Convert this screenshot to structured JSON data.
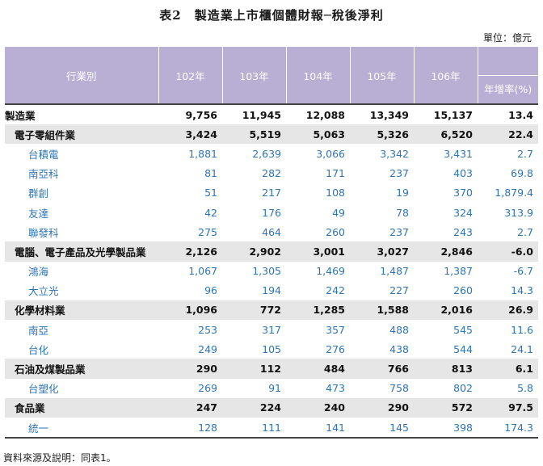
{
  "title": {
    "label": "表2",
    "text": "製造業上市櫃個體財報─稅後淨利"
  },
  "unit": "單位：億元",
  "header": {
    "category": "行業別",
    "years": [
      "102年",
      "103年",
      "104年",
      "105年",
      "106年"
    ],
    "growth": "年增率(%)"
  },
  "rows": [
    {
      "type": "total",
      "name": "製造業",
      "values": [
        "9,756",
        "11,945",
        "12,088",
        "13,349",
        "15,137"
      ],
      "growth": "13.4"
    },
    {
      "type": "cat",
      "name": "電子零組件業",
      "values": [
        "3,424",
        "5,519",
        "5,063",
        "5,326",
        "6,520"
      ],
      "growth": "22.4"
    },
    {
      "type": "co",
      "name": "台積電",
      "values": [
        "1,881",
        "2,639",
        "3,066",
        "3,342",
        "3,431"
      ],
      "growth": "2.7"
    },
    {
      "type": "co",
      "name": "南亞科",
      "values": [
        "81",
        "282",
        "171",
        "237",
        "403"
      ],
      "growth": "69.8"
    },
    {
      "type": "co",
      "name": "群創",
      "values": [
        "51",
        "217",
        "108",
        "19",
        "370"
      ],
      "growth": "1,879.4"
    },
    {
      "type": "co",
      "name": "友達",
      "values": [
        "42",
        "176",
        "49",
        "78",
        "324"
      ],
      "growth": "313.9"
    },
    {
      "type": "co",
      "name": "聯發科",
      "values": [
        "275",
        "464",
        "260",
        "237",
        "243"
      ],
      "growth": "2.7"
    },
    {
      "type": "cat",
      "name": "電腦、電子產品及光學製品業",
      "values": [
        "2,126",
        "2,902",
        "3,001",
        "3,027",
        "2,846"
      ],
      "growth": "-6.0"
    },
    {
      "type": "co",
      "name": "鴻海",
      "values": [
        "1,067",
        "1,305",
        "1,469",
        "1,487",
        "1,387"
      ],
      "growth": "-6.7"
    },
    {
      "type": "co",
      "name": "大立光",
      "values": [
        "96",
        "194",
        "242",
        "227",
        "260"
      ],
      "growth": "14.3"
    },
    {
      "type": "cat",
      "name": "化學材料業",
      "values": [
        "1,096",
        "772",
        "1,285",
        "1,588",
        "2,016"
      ],
      "growth": "26.9"
    },
    {
      "type": "co",
      "name": "南亞",
      "values": [
        "253",
        "317",
        "357",
        "488",
        "545"
      ],
      "growth": "11.6"
    },
    {
      "type": "co",
      "name": "台化",
      "values": [
        "249",
        "105",
        "276",
        "438",
        "544"
      ],
      "growth": "24.1"
    },
    {
      "type": "cat",
      "name": "石油及煤製品業",
      "values": [
        "290",
        "112",
        "484",
        "766",
        "813"
      ],
      "growth": "6.1"
    },
    {
      "type": "co",
      "name": "台塑化",
      "values": [
        "269",
        "91",
        "473",
        "758",
        "802"
      ],
      "growth": "5.8"
    },
    {
      "type": "cat",
      "name": "食品業",
      "values": [
        "247",
        "224",
        "240",
        "290",
        "572"
      ],
      "growth": "97.5"
    },
    {
      "type": "co",
      "name": "統一",
      "values": [
        "128",
        "111",
        "141",
        "145",
        "398"
      ],
      "growth": "174.3"
    }
  ],
  "note": "資料來源及說明：同表1。"
}
